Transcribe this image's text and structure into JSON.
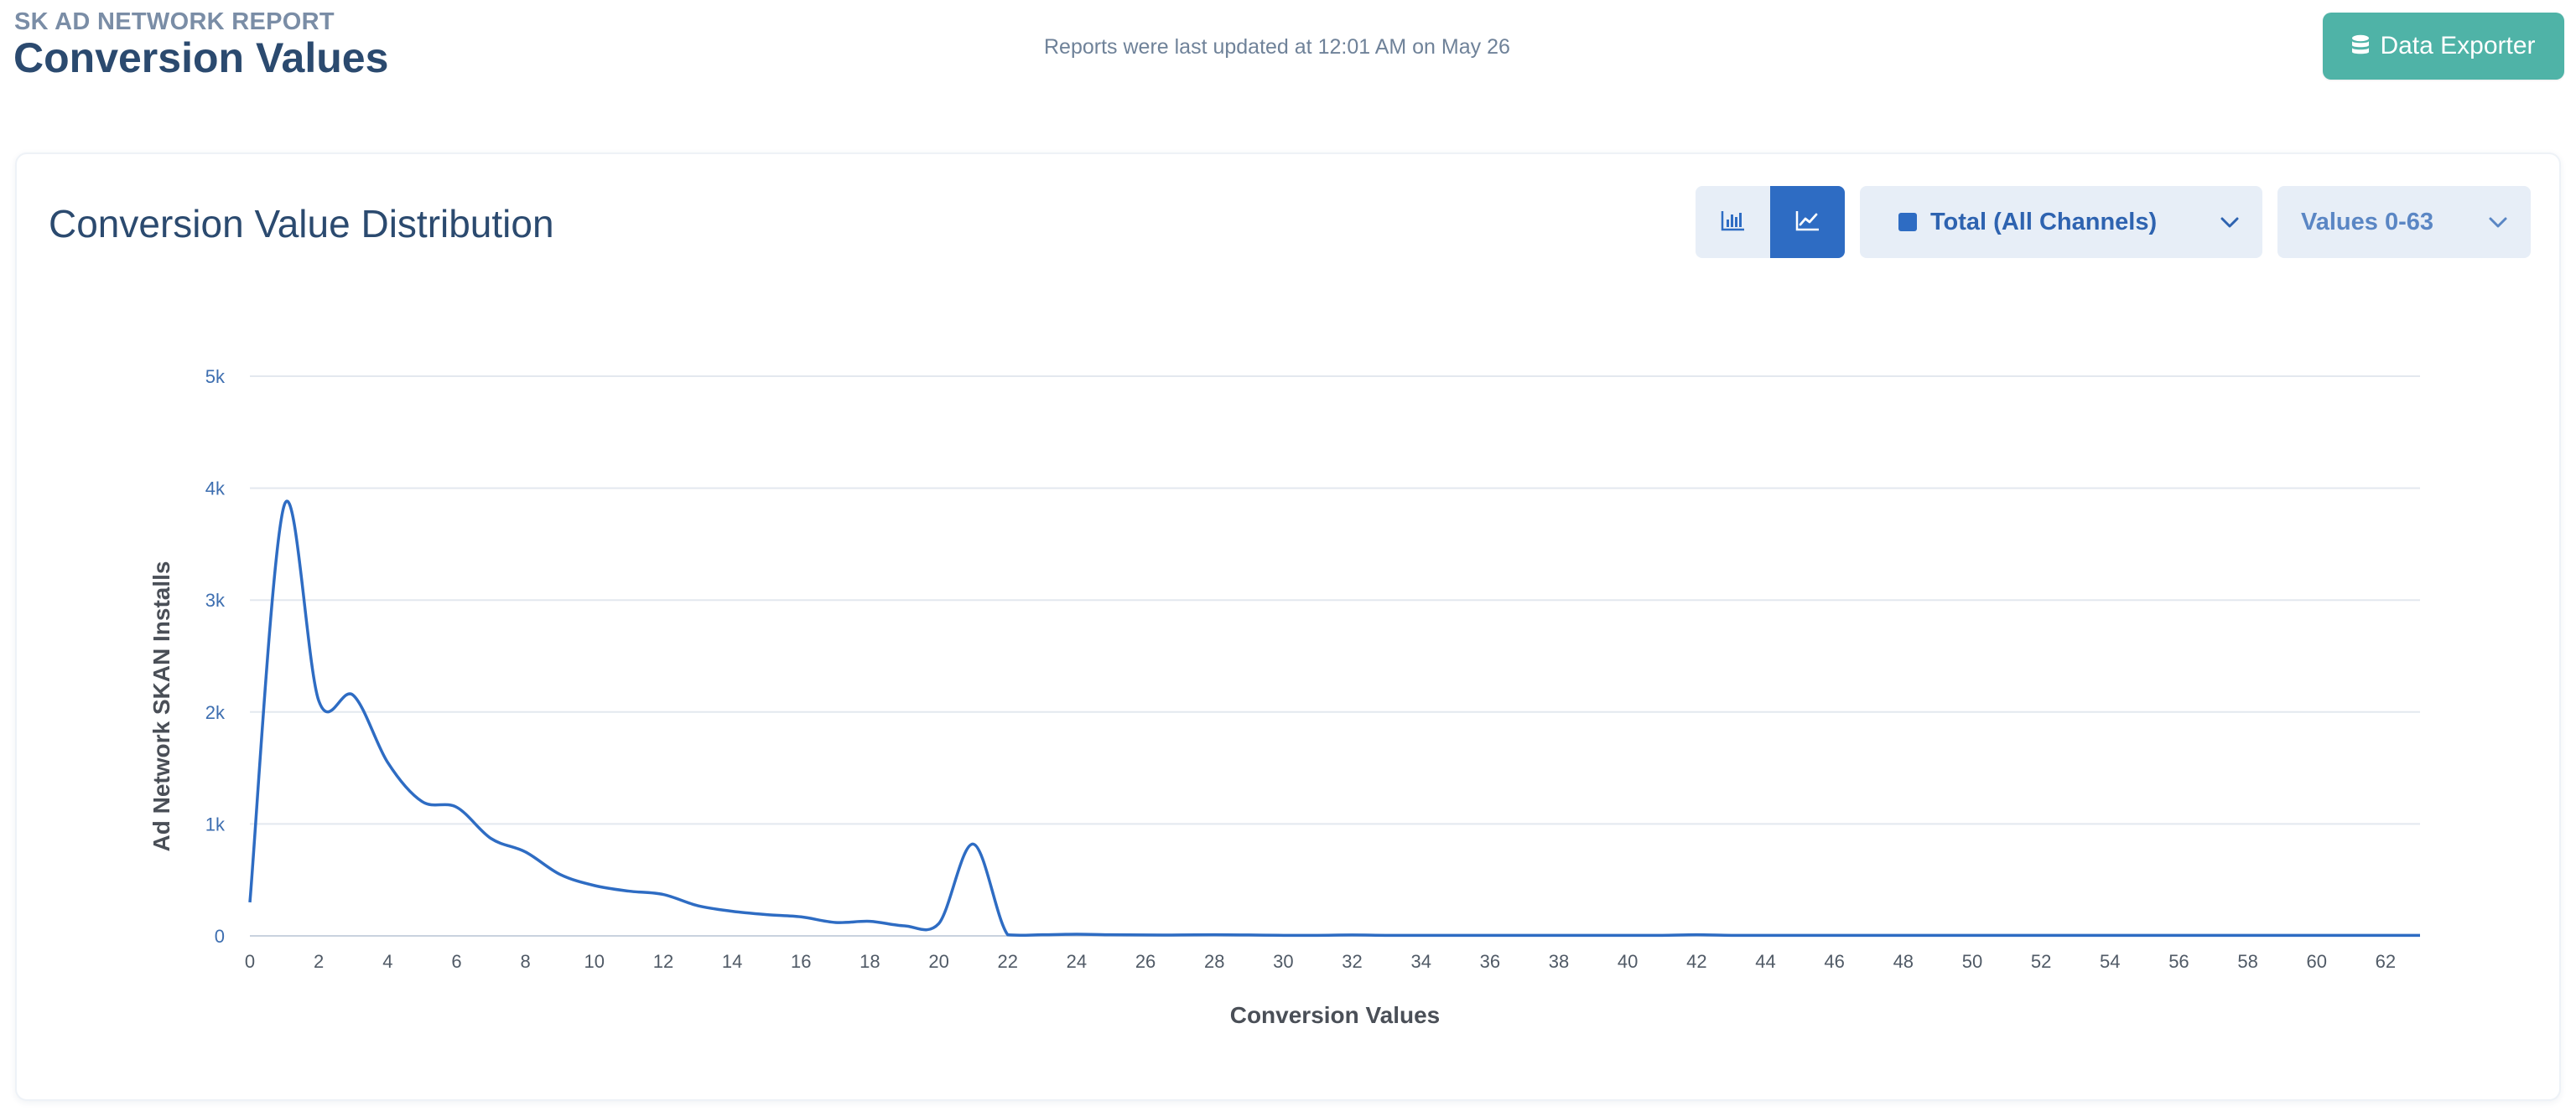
{
  "header": {
    "eyebrow": "SK AD NETWORK REPORT",
    "title": "Conversion Values",
    "updated_text": "Reports were last updated at 12:01 AM on May 26",
    "export_button": {
      "label": "Data Exporter",
      "icon": "database-icon"
    }
  },
  "card": {
    "title": "Conversion Value Distribution",
    "view_toggle": [
      {
        "name": "bar-chart",
        "icon": "bar-chart-icon",
        "active": false
      },
      {
        "name": "line-chart",
        "icon": "line-chart-icon",
        "active": true
      }
    ],
    "channel_dropdown": {
      "label": "Total (All Channels)",
      "color": "#2e6cc3"
    },
    "range_dropdown": {
      "label": "Values 0-63"
    }
  },
  "colors": {
    "accent": "#2e6cc3",
    "export_button": "#4fb3a7",
    "title": "#2b4a6f"
  },
  "chart_data": {
    "type": "line",
    "title": "",
    "xlabel": "Conversion Values",
    "ylabel": "Ad Network SKAN Installs",
    "xlim": [
      0,
      63
    ],
    "ylim": [
      0,
      5000
    ],
    "y_ticks": [
      {
        "value": 0,
        "label": "0"
      },
      {
        "value": 1000,
        "label": "1k"
      },
      {
        "value": 2000,
        "label": "2k"
      },
      {
        "value": 3000,
        "label": "3k"
      },
      {
        "value": 4000,
        "label": "4k"
      },
      {
        "value": 5000,
        "label": "5k"
      }
    ],
    "x_ticks": [
      0,
      2,
      4,
      6,
      8,
      10,
      12,
      14,
      16,
      18,
      20,
      22,
      24,
      26,
      28,
      30,
      32,
      34,
      36,
      38,
      40,
      42,
      44,
      46,
      48,
      50,
      52,
      54,
      56,
      58,
      60,
      62
    ],
    "grid": true,
    "series": [
      {
        "color": "#2e6cc3",
        "x": [
          0,
          1,
          2,
          3,
          4,
          5,
          6,
          7,
          8,
          9,
          10,
          11,
          12,
          13,
          14,
          15,
          16,
          17,
          18,
          19,
          20,
          21,
          22,
          23,
          24,
          25,
          26,
          27,
          28,
          29,
          30,
          31,
          32,
          33,
          34,
          35,
          36,
          37,
          38,
          39,
          40,
          41,
          42,
          43,
          44,
          45,
          46,
          47,
          48,
          49,
          50,
          51,
          52,
          53,
          54,
          55,
          56,
          57,
          58,
          59,
          60,
          61,
          62,
          63
        ],
        "y": [
          300,
          3850,
          2100,
          2150,
          1550,
          1200,
          1150,
          870,
          750,
          550,
          450,
          400,
          370,
          270,
          220,
          190,
          170,
          120,
          130,
          90,
          110,
          820,
          10,
          10,
          15,
          10,
          8,
          8,
          10,
          8,
          5,
          5,
          8,
          5,
          5,
          5,
          5,
          5,
          5,
          5,
          5,
          5,
          10,
          5,
          5,
          5,
          5,
          5,
          5,
          5,
          5,
          5,
          5,
          5,
          5,
          5,
          5,
          5,
          5,
          5,
          5,
          5,
          5,
          5
        ]
      }
    ]
  }
}
